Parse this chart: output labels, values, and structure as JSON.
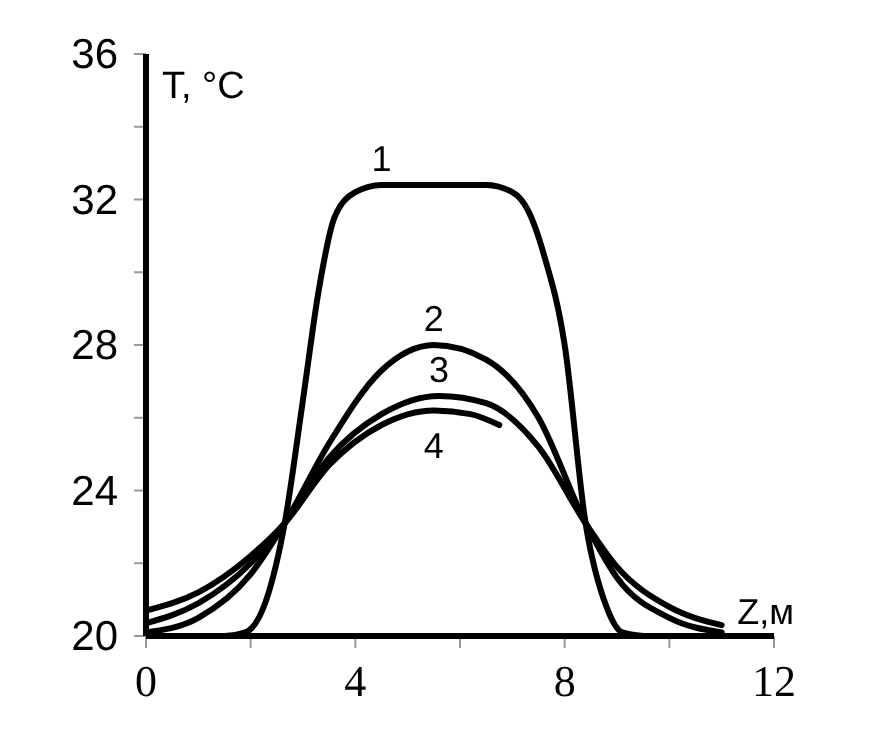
{
  "chart_data": {
    "type": "line",
    "xlabel": "Z,м",
    "ylabel": "T, °C",
    "xlim": [
      0,
      12
    ],
    "ylim": [
      20,
      36
    ],
    "xticks": [
      0,
      {
        "value": 2,
        "label": null
      },
      4,
      {
        "value": 6,
        "label": null
      },
      8,
      {
        "value": 10,
        "label": null
      },
      12
    ],
    "yticks": [
      20,
      {
        "value": 22,
        "label": null
      },
      24,
      {
        "value": 26,
        "label": null
      },
      28,
      {
        "value": 30,
        "label": null
      },
      32,
      {
        "value": 34,
        "label": null
      },
      36
    ],
    "grid": false,
    "marker": "none",
    "line_style": "solid",
    "series": [
      {
        "name": "1",
        "color": "#000000",
        "x": [
          1.2,
          1.5,
          1.9,
          2.3,
          2.65,
          3.0,
          3.3,
          3.6,
          4,
          4.5,
          6.5,
          7,
          7.3,
          7.6,
          8.0,
          8.4,
          8.8,
          9.1,
          9.5
        ],
        "values": [
          20,
          20,
          20.1,
          21,
          23.1,
          26.5,
          29.5,
          31.5,
          32.2,
          32.4,
          32.4,
          32.2,
          31.7,
          30.5,
          28,
          23.1,
          20.8,
          20.1,
          20
        ]
      },
      {
        "name": "2",
        "color": "#000000",
        "x": [
          0,
          1,
          2,
          2.65,
          3.5,
          4.5,
          5.5,
          6.5,
          7.5,
          8.4,
          9,
          10,
          11
        ],
        "values": [
          20.1,
          20.5,
          21.7,
          23.1,
          25.3,
          27.3,
          28.0,
          27.6,
          26.0,
          23.1,
          21.6,
          20.5,
          20.1
        ]
      },
      {
        "name": "3",
        "color": "#000000",
        "x": [
          0,
          1,
          2,
          2.65,
          3.5,
          4.5,
          5.6,
          6.5,
          7.5,
          8.4,
          9,
          10,
          11
        ],
        "values": [
          20.35,
          20.9,
          22.0,
          23.1,
          24.9,
          26.1,
          26.6,
          26.4,
          25.2,
          23.1,
          21.9,
          20.8,
          20.3
        ]
      },
      {
        "name": "4",
        "color": "#000000",
        "x": [
          0,
          1,
          2,
          2.65,
          3.5,
          4.5,
          5.5,
          6.2,
          6.75
        ],
        "values": [
          20.7,
          21.2,
          22.2,
          23.1,
          24.7,
          25.8,
          26.2,
          26.1,
          25.8
        ]
      }
    ]
  }
}
